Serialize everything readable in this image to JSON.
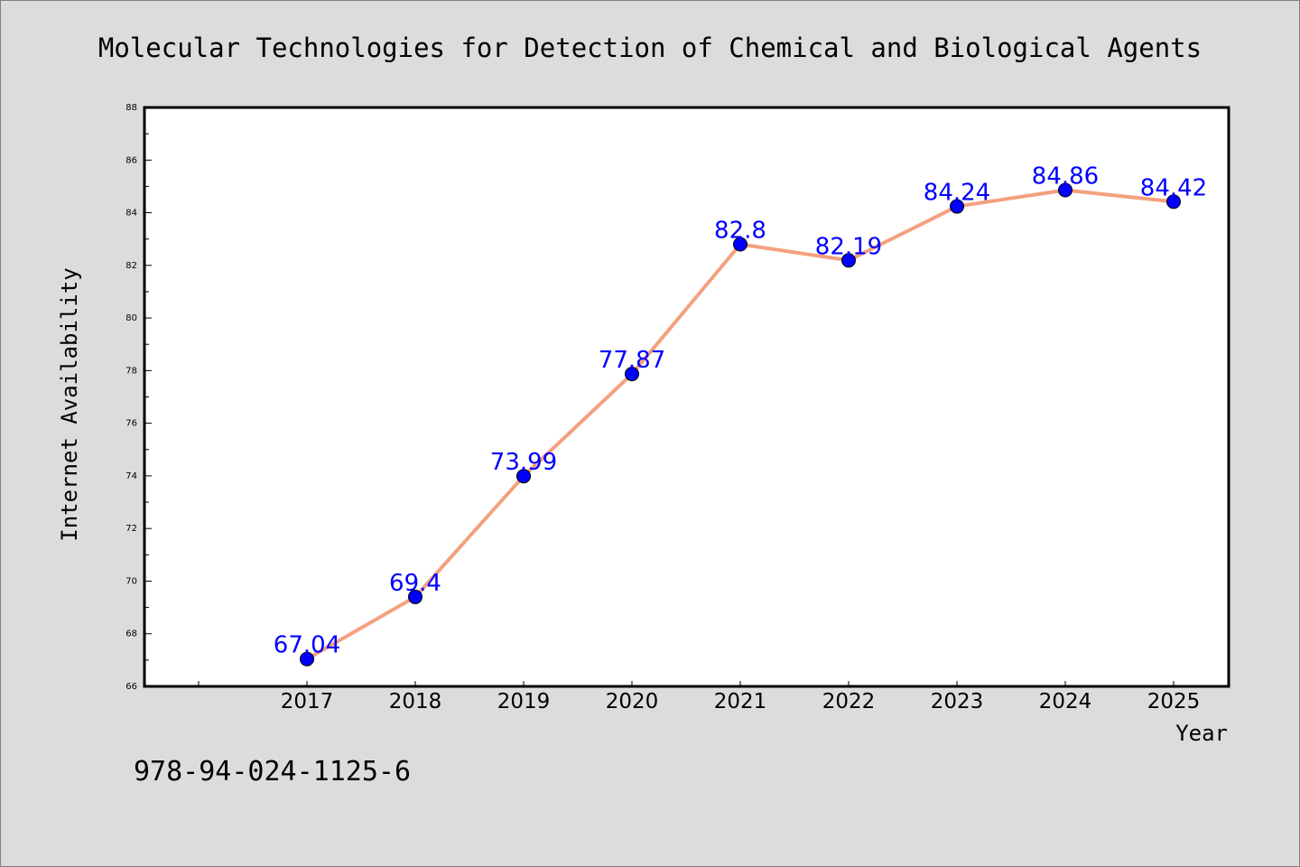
{
  "chart_data": {
    "type": "line",
    "title": "Molecular Technologies for Detection of Chemical and Biological Agents",
    "xlabel": "Year",
    "ylabel": "Internet Availability",
    "categories": [
      "2017",
      "2018",
      "2019",
      "2020",
      "2021",
      "2022",
      "2023",
      "2024",
      "2025"
    ],
    "series": [
      {
        "values": [
          67.04,
          69.4,
          73.99,
          77.87,
          82.8,
          82.19,
          84.24,
          84.86,
          84.42
        ],
        "data_labels": [
          "67.04",
          "69.4",
          "73.99",
          "77.87",
          "82.8",
          "82.19",
          "84.24",
          "84.86",
          "84.42"
        ]
      }
    ],
    "ylim": [
      66,
      88
    ],
    "y_ticks": [
      "66",
      "68",
      "70",
      "72",
      "74",
      "76",
      "78",
      "80",
      "82",
      "84",
      "86",
      "88"
    ],
    "grid": false,
    "legend": "none",
    "colors": {
      "line": "#f4a07e",
      "marker": "#0000ff",
      "data_label": "#0000ff",
      "background": "#dcdcdc",
      "plot_area": "#ffffff"
    }
  },
  "annotation": "978-94-024-1125-6"
}
